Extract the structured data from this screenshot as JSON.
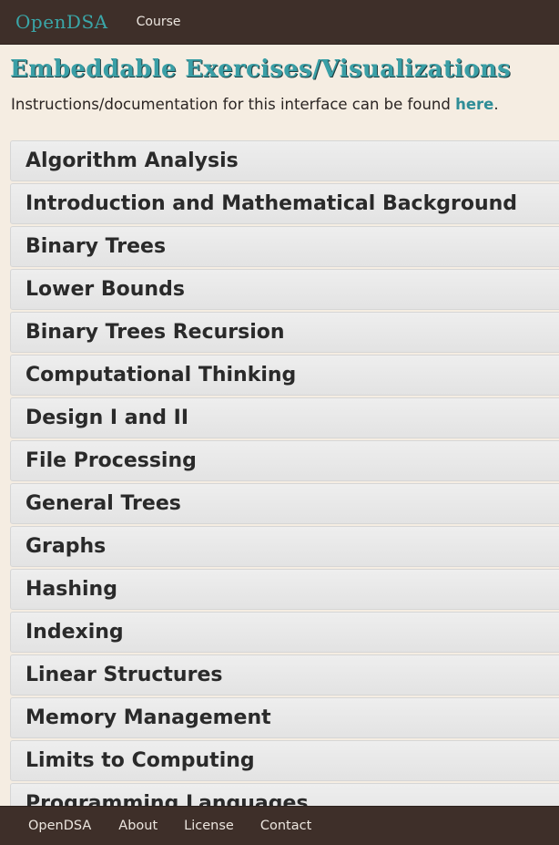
{
  "header": {
    "brand": "OpenDSA",
    "nav_course": "Course"
  },
  "main": {
    "title": "Embeddable Exercises/Visualizations",
    "instructions_prefix": "Instructions/documentation for this interface can be found ",
    "instructions_link": "here",
    "instructions_suffix": "."
  },
  "categories": [
    "Algorithm Analysis",
    "Introduction and Mathematical Background",
    "Binary Trees",
    "Lower Bounds",
    "Binary Trees Recursion",
    "Computational Thinking",
    "Design I and II",
    "File Processing",
    "General Trees",
    "Graphs",
    "Hashing",
    "Indexing",
    "Linear Structures",
    "Memory Management",
    "Limits to Computing",
    "Programming Languages"
  ],
  "footer": {
    "links": [
      "OpenDSA",
      "About",
      "License",
      "Contact"
    ]
  },
  "colors": {
    "header_bg": "#3e2f29",
    "page_bg": "#f5ede2",
    "accent": "#3a9fa6",
    "list_item_bg": "#e8e8e8"
  }
}
